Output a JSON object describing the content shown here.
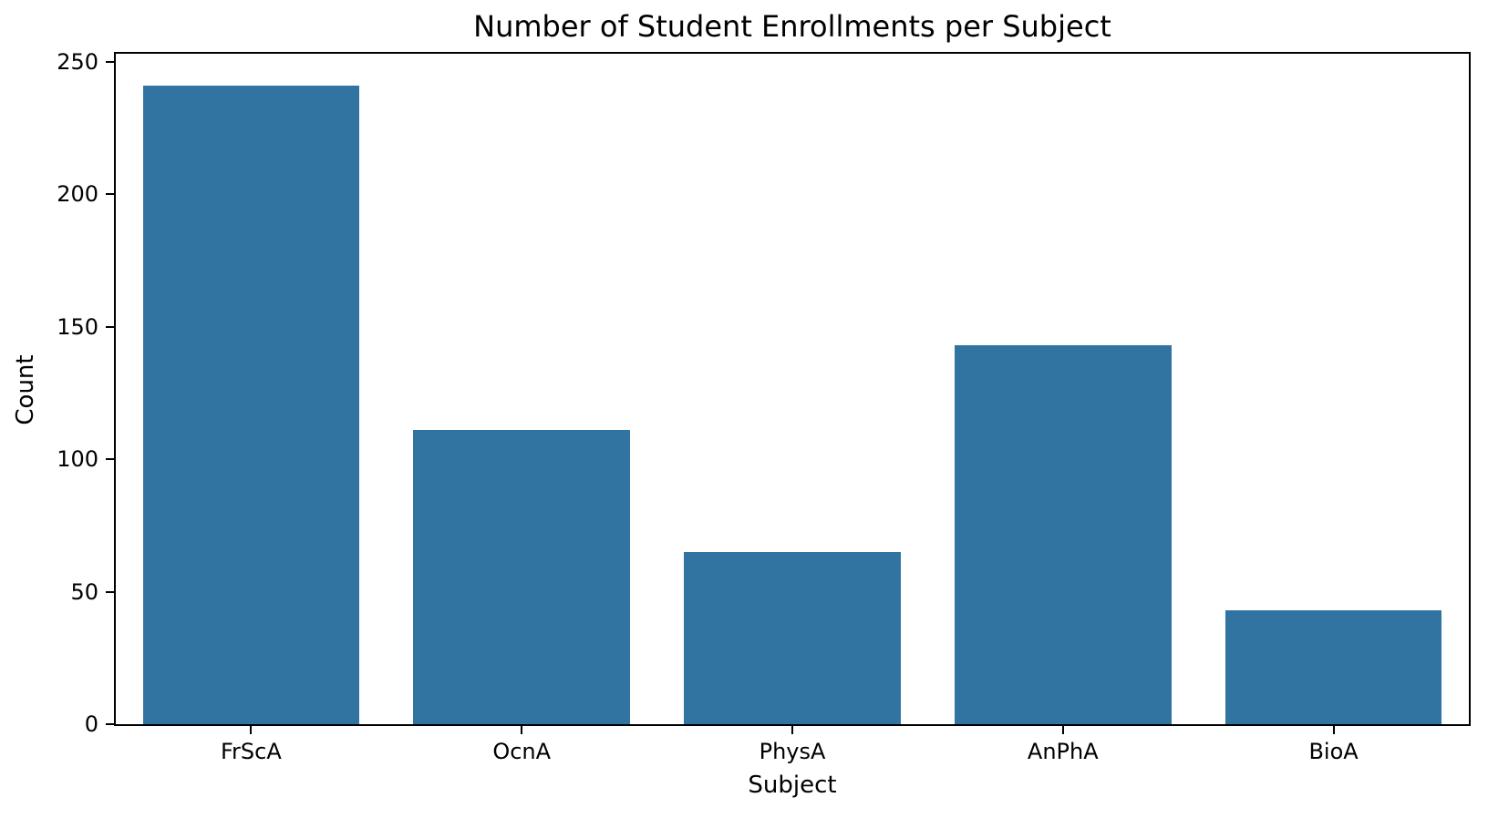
{
  "chart_data": {
    "type": "bar",
    "title": "Number of Student Enrollments per Subject",
    "xlabel": "Subject",
    "ylabel": "Count",
    "categories": [
      "FrScA",
      "OcnA",
      "PhysA",
      "AnPhA",
      "BioA"
    ],
    "values": [
      241,
      111,
      65,
      143,
      43
    ],
    "yticks": [
      0,
      50,
      100,
      150,
      200,
      250
    ],
    "ylim": [
      0,
      253.05
    ],
    "grid": false,
    "legend": "none",
    "bar_width_fraction": 0.8,
    "colors": {
      "bar": "#3274a1",
      "axis": "#000000",
      "text": "#000000",
      "background": "#ffffff"
    }
  }
}
